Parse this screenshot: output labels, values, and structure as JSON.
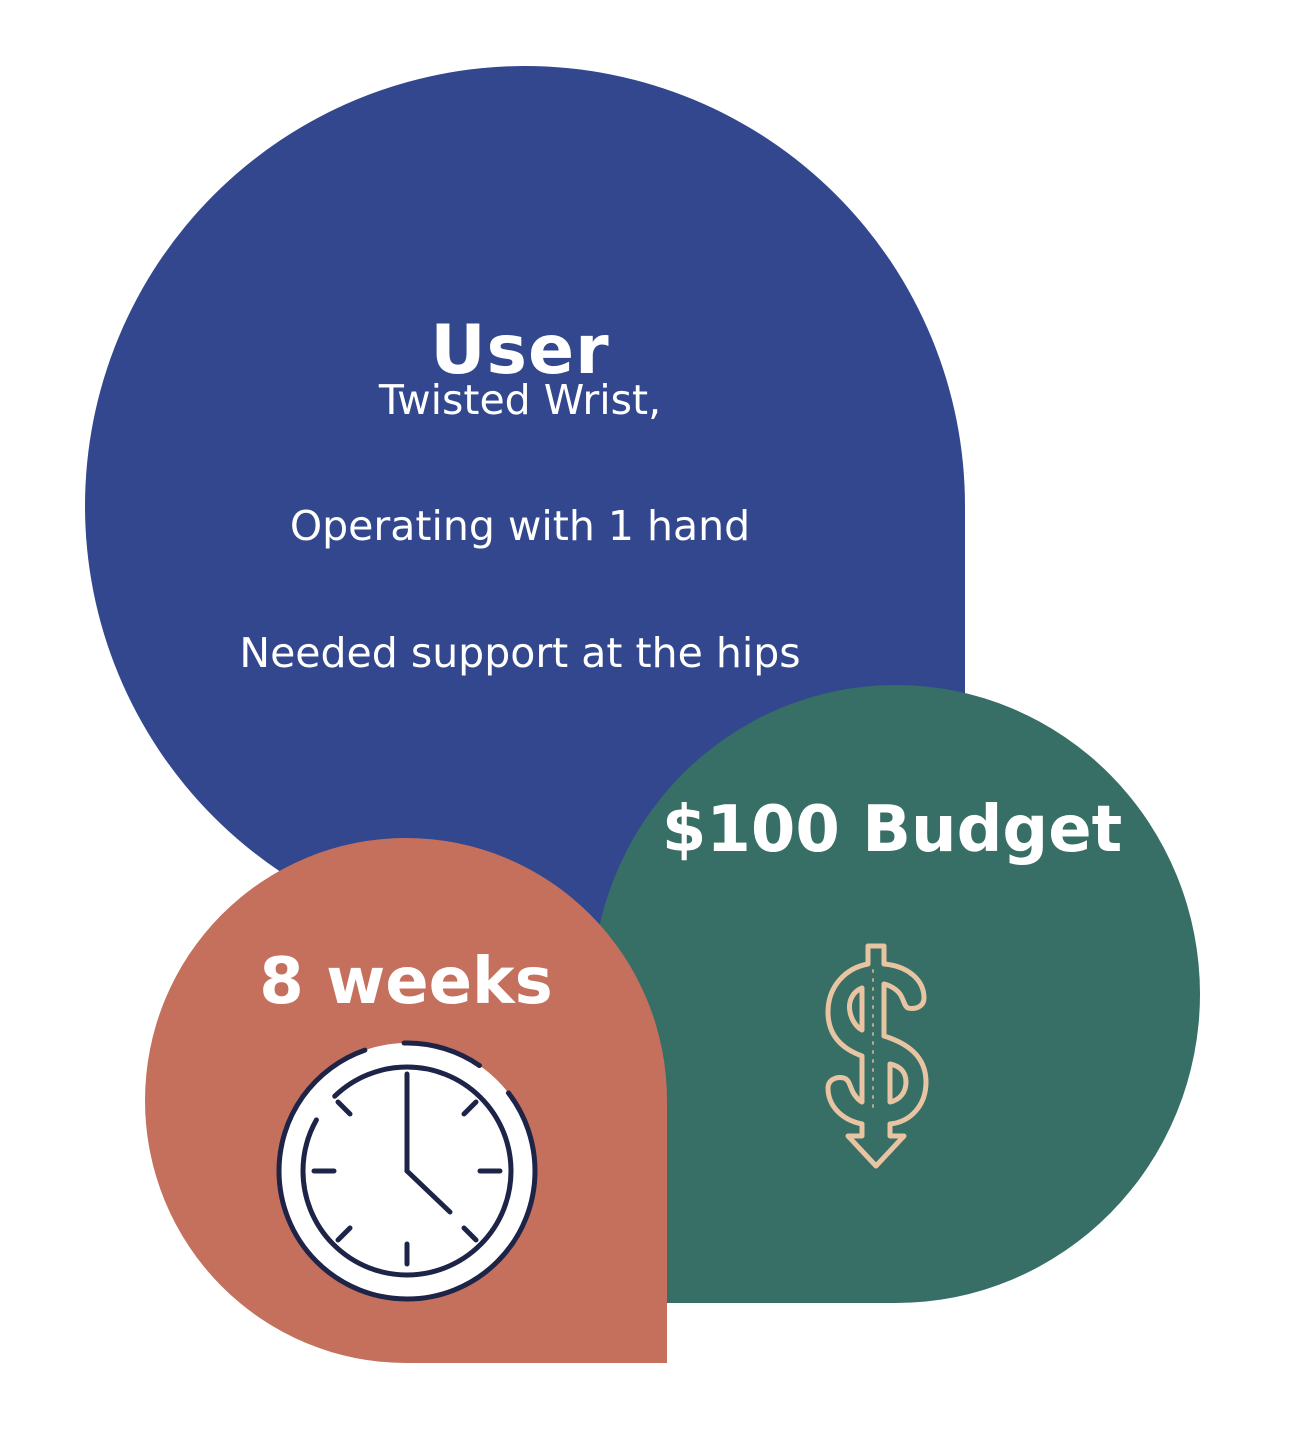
{
  "user": {
    "title": "User",
    "lines": [
      "Twisted Wrist,",
      "Operating with 1 hand",
      "Needed support at the hips"
    ]
  },
  "budget": {
    "title": "$100 Budget",
    "icon": "dollar-down-arrow-icon"
  },
  "timeline": {
    "title": "8 weeks",
    "icon": "clock-icon"
  },
  "colors": {
    "user_blob": "#33478f",
    "budget_blob": "#376e66",
    "time_blob": "#c4705d",
    "dollar_icon": "#e8c4a2",
    "clock_stroke": "#1e2447",
    "text": "#ffffff"
  }
}
